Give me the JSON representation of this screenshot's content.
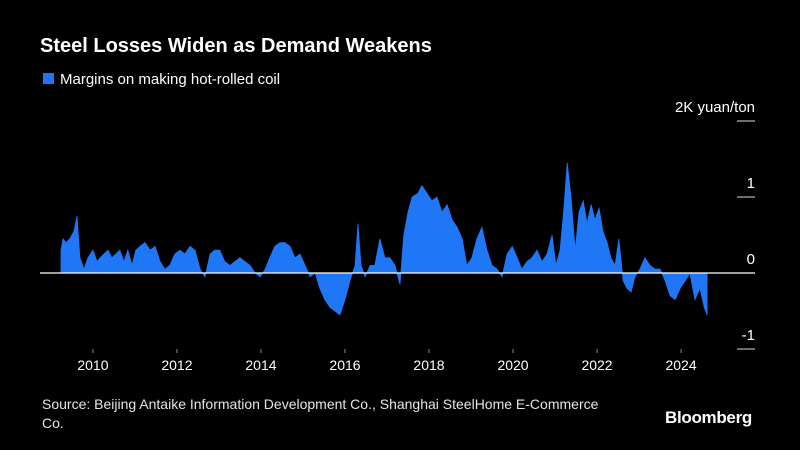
{
  "chart_data": {
    "type": "area",
    "title": "Steel Losses Widen as Demand Weakens",
    "source": "Source: Beijing Antaike Information Development Co., Shanghai SteelHome E-Commerce Co.",
    "brand": "Bloomberg",
    "xlim": [
      2008.74,
      2025.76
    ],
    "xticks": [
      2010,
      2012,
      2014,
      2016,
      2018,
      2020,
      2022,
      2024
    ],
    "ylim": [
      -1,
      2
    ],
    "yticks": [
      {
        "value": 2,
        "label": "2K yuan/ton"
      },
      1,
      0,
      -1
    ],
    "series": [
      {
        "name": "Margins on making hot-rolled coil",
        "color": "#1f77f5",
        "x": [
          2009.24,
          2009.29,
          2009.36,
          2009.45,
          2009.55,
          2009.62,
          2009.69,
          2009.79,
          2009.88,
          2010.0,
          2010.1,
          2010.17,
          2010.26,
          2010.36,
          2010.45,
          2010.55,
          2010.64,
          2010.74,
          2010.83,
          2010.93,
          2011.02,
          2011.12,
          2011.24,
          2011.36,
          2011.48,
          2011.6,
          2011.71,
          2011.83,
          2011.95,
          2012.07,
          2012.19,
          2012.31,
          2012.43,
          2012.55,
          2012.67,
          2012.79,
          2012.9,
          2013.02,
          2013.14,
          2013.26,
          2013.38,
          2013.5,
          2013.62,
          2013.74,
          2013.86,
          2013.98,
          2014.1,
          2014.21,
          2014.33,
          2014.45,
          2014.57,
          2014.69,
          2014.81,
          2014.93,
          2015.05,
          2015.17,
          2015.29,
          2015.4,
          2015.52,
          2015.64,
          2015.76,
          2015.88,
          2016.0,
          2016.12,
          2016.24,
          2016.31,
          2016.38,
          2016.48,
          2016.6,
          2016.71,
          2016.83,
          2016.95,
          2017.07,
          2017.19,
          2017.31,
          2017.4,
          2017.5,
          2017.6,
          2017.74,
          2017.83,
          2017.95,
          2018.07,
          2018.19,
          2018.31,
          2018.43,
          2018.55,
          2018.67,
          2018.79,
          2018.9,
          2019.02,
          2019.14,
          2019.26,
          2019.38,
          2019.5,
          2019.62,
          2019.74,
          2019.86,
          2019.98,
          2020.1,
          2020.21,
          2020.33,
          2020.45,
          2020.57,
          2020.69,
          2020.81,
          2020.93,
          2021.02,
          2021.12,
          2021.21,
          2021.29,
          2021.38,
          2021.48,
          2021.57,
          2021.67,
          2021.76,
          2021.86,
          2021.95,
          2022.05,
          2022.14,
          2022.24,
          2022.33,
          2022.43,
          2022.52,
          2022.62,
          2022.71,
          2022.81,
          2022.9,
          2023.02,
          2023.14,
          2023.26,
          2023.38,
          2023.5,
          2023.62,
          2023.74,
          2023.86,
          2023.98,
          2024.1,
          2024.21,
          2024.33,
          2024.45,
          2024.55,
          2024.62
        ],
        "values": [
          0.3,
          0.45,
          0.4,
          0.45,
          0.55,
          0.75,
          0.2,
          0.05,
          0.2,
          0.3,
          0.15,
          0.2,
          0.25,
          0.3,
          0.2,
          0.25,
          0.3,
          0.15,
          0.3,
          0.1,
          0.3,
          0.35,
          0.4,
          0.3,
          0.35,
          0.15,
          0.05,
          0.1,
          0.25,
          0.3,
          0.25,
          0.35,
          0.3,
          0.05,
          -0.05,
          0.25,
          0.3,
          0.3,
          0.15,
          0.1,
          0.15,
          0.2,
          0.15,
          0.1,
          0.0,
          -0.05,
          0.05,
          0.2,
          0.35,
          0.4,
          0.4,
          0.35,
          0.2,
          0.25,
          0.1,
          -0.05,
          0.0,
          -0.2,
          -0.35,
          -0.45,
          -0.5,
          -0.55,
          -0.35,
          -0.1,
          0.1,
          0.65,
          0.1,
          -0.05,
          0.1,
          0.1,
          0.45,
          0.2,
          0.2,
          0.1,
          -0.15,
          0.5,
          0.8,
          1.0,
          1.05,
          1.15,
          1.05,
          0.95,
          1.0,
          0.8,
          0.9,
          0.7,
          0.6,
          0.45,
          0.1,
          0.2,
          0.45,
          0.6,
          0.3,
          0.1,
          0.05,
          -0.05,
          0.25,
          0.35,
          0.2,
          0.05,
          0.15,
          0.2,
          0.3,
          0.15,
          0.25,
          0.5,
          0.1,
          0.3,
          0.85,
          1.45,
          1.0,
          0.3,
          0.8,
          0.95,
          0.65,
          0.9,
          0.7,
          0.85,
          0.55,
          0.4,
          0.2,
          0.1,
          0.45,
          -0.1,
          -0.2,
          -0.25,
          -0.05,
          0.05,
          0.2,
          0.1,
          0.05,
          0.05,
          -0.1,
          -0.3,
          -0.35,
          -0.2,
          -0.1,
          0.0,
          -0.35,
          -0.2,
          -0.45,
          -0.55
        ]
      }
    ]
  }
}
